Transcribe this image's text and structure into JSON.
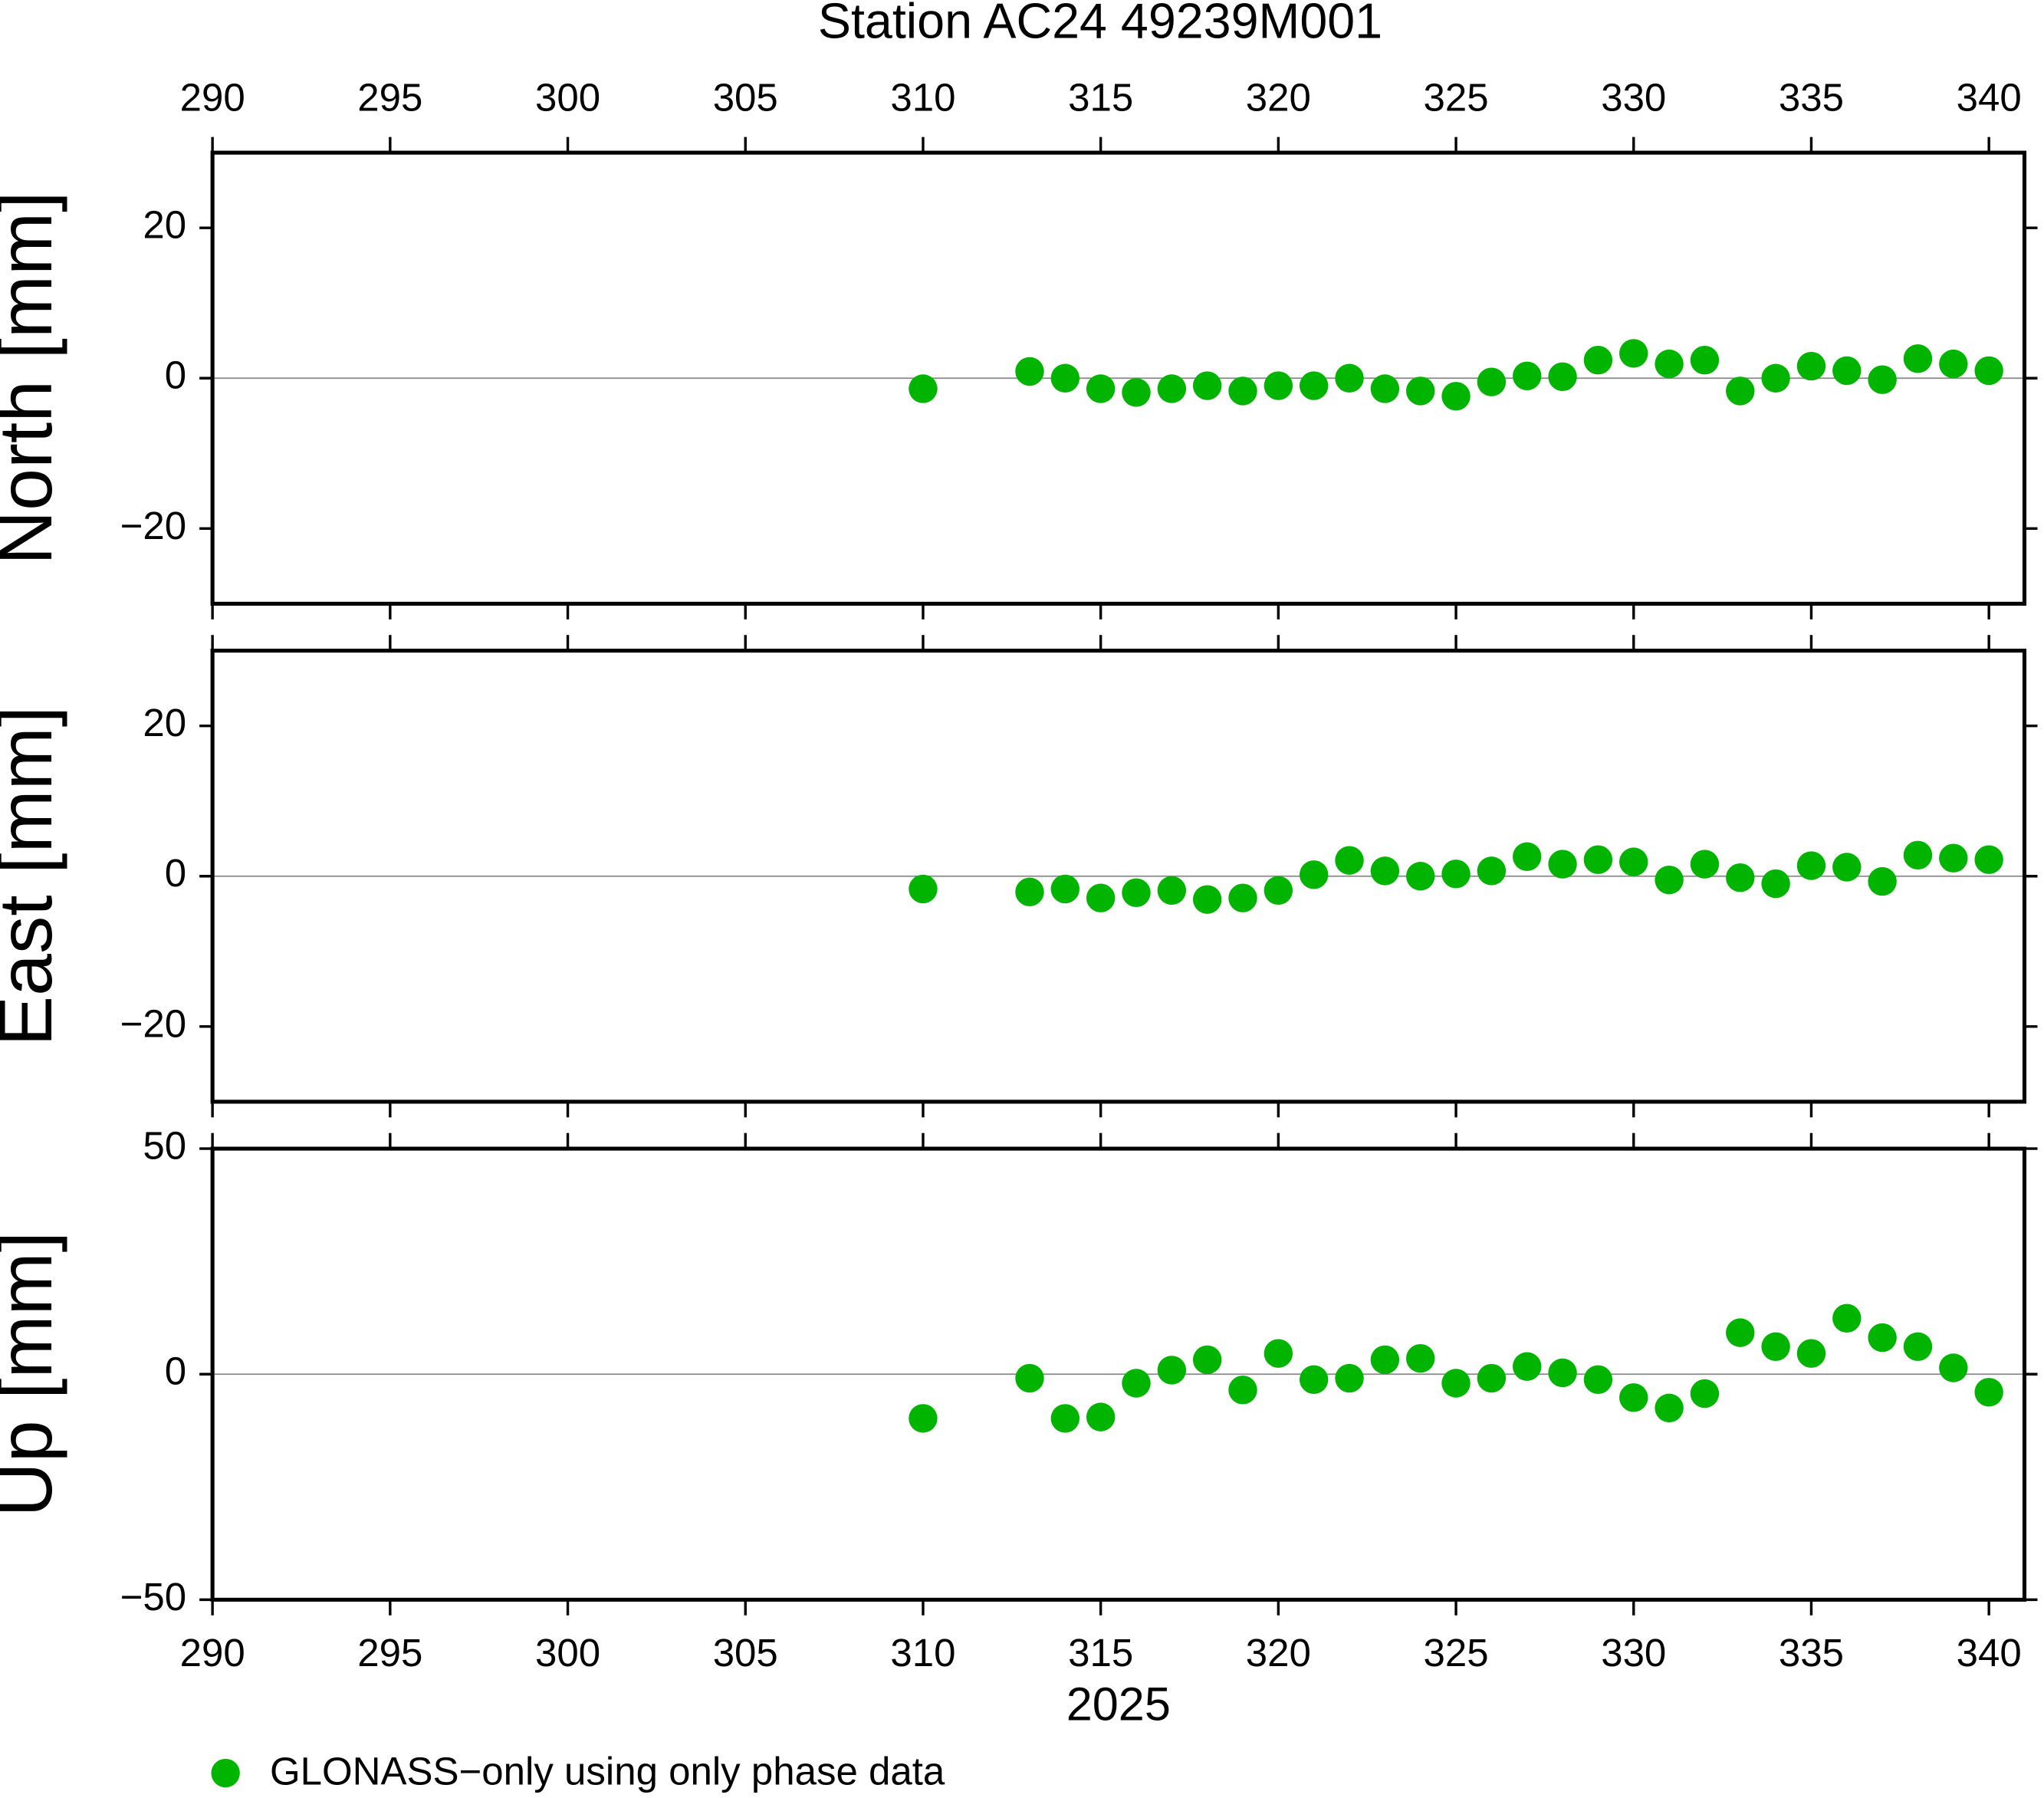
{
  "chart_data": [
    {
      "type": "scatter",
      "title": "Station AC24 49239M001",
      "ylabel": "North [mm]",
      "x": [
        310,
        313,
        314,
        315,
        316,
        317,
        318,
        319,
        320,
        321,
        322,
        323,
        324,
        325,
        326,
        327,
        328,
        329,
        330,
        331,
        332,
        333,
        334,
        335,
        336,
        337,
        338,
        339,
        340
      ],
      "series": [
        {
          "name": "GLONASS−only using only phase data",
          "color": "#00b400",
          "values": [
            -1.4,
            0.9,
            0,
            -1.4,
            -1.9,
            -1.4,
            -1,
            -1.7,
            -1,
            -1,
            0,
            -1.4,
            -1.7,
            -2.4,
            -0.5,
            0.3,
            0.2,
            2.4,
            3.3,
            1.9,
            2.4,
            -1.7,
            0,
            1.6,
            1,
            -0.2,
            2.6,
            1.9,
            1
          ]
        }
      ],
      "xlim": [
        290,
        341
      ],
      "xticks": [
        290,
        295,
        300,
        305,
        310,
        315,
        320,
        325,
        330,
        335,
        340
      ],
      "ylim": [
        -30,
        30
      ],
      "yticks": [
        {
          "value": -20,
          "label": "−20"
        },
        0,
        20
      ],
      "hline": 0
    },
    {
      "type": "scatter",
      "ylabel": "East [mm]",
      "x": [
        310,
        313,
        314,
        315,
        316,
        317,
        318,
        319,
        320,
        321,
        322,
        323,
        324,
        325,
        326,
        327,
        328,
        329,
        330,
        331,
        332,
        333,
        334,
        335,
        336,
        337,
        338,
        339,
        340
      ],
      "series": [
        {
          "name": "GLONASS−only using only phase data",
          "color": "#00b400",
          "values": [
            -1.7,
            -2.1,
            -1.7,
            -2.9,
            -2.2,
            -1.9,
            -3.1,
            -2.9,
            -1.9,
            0.2,
            2.1,
            0.7,
            0,
            0.3,
            0.7,
            2.6,
            1.6,
            2.2,
            1.9,
            -0.5,
            1.6,
            -0.2,
            -1,
            1.4,
            1.2,
            -0.7,
            2.8,
            2.4,
            2.2
          ]
        }
      ],
      "xlim": [
        290,
        341
      ],
      "xticks": [
        290,
        295,
        300,
        305,
        310,
        315,
        320,
        325,
        330,
        335,
        340
      ],
      "ylim": [
        -30,
        30
      ],
      "yticks": [
        {
          "value": -20,
          "label": "−20"
        },
        0,
        20
      ],
      "hline": 0
    },
    {
      "type": "scatter",
      "ylabel": "Up [mm]",
      "xlabel": "2025",
      "x": [
        310,
        313,
        314,
        315,
        316,
        317,
        318,
        319,
        320,
        321,
        322,
        323,
        324,
        325,
        326,
        327,
        328,
        329,
        330,
        331,
        332,
        333,
        334,
        335,
        336,
        337,
        338,
        339,
        340
      ],
      "series": [
        {
          "name": "GLONASS−only using only phase data",
          "color": "#00b400",
          "values": [
            -9.8,
            -0.9,
            -9.8,
            -9.5,
            -2,
            0.9,
            3.2,
            -3.5,
            4.6,
            -1.2,
            -0.9,
            3.2,
            3.5,
            -2,
            -0.9,
            1.7,
            0.3,
            -1.2,
            -5.2,
            -7.5,
            -4.3,
            9.2,
            6.1,
            4.6,
            12.4,
            8.1,
            6.1,
            1.4,
            -4
          ]
        }
      ],
      "xlim": [
        290,
        341
      ],
      "xticks": [
        290,
        295,
        300,
        305,
        310,
        315,
        320,
        325,
        330,
        335,
        340
      ],
      "ylim": [
        -50,
        50
      ],
      "yticks": [
        {
          "value": -50,
          "label": "−50"
        },
        0,
        50
      ],
      "hline": 0
    }
  ]
}
